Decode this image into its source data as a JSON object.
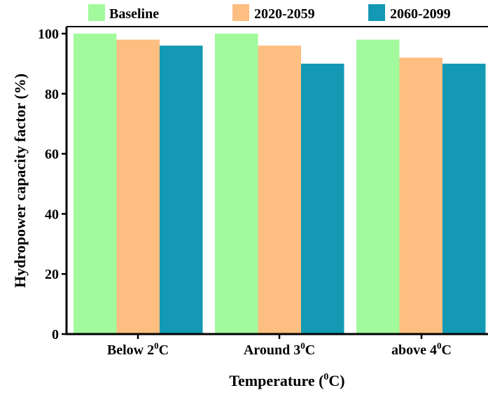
{
  "chart_data": {
    "type": "bar",
    "title": "",
    "xlabel": {
      "base": "Temperature (",
      "sup": "0",
      "tail": "C)"
    },
    "ylabel": "Hydropower capacity factor (%)",
    "ylim": [
      0,
      100
    ],
    "yticks": [
      "0",
      "20",
      "40",
      "60",
      "80",
      "100"
    ],
    "grid": false,
    "legend_position": "top",
    "categories": [
      {
        "base": "Below 2",
        "sup": "0",
        "tail": "C"
      },
      {
        "base": "Around 3",
        "sup": "0",
        "tail": "C"
      },
      {
        "base": "above 4",
        "sup": "0",
        "tail": "C"
      }
    ],
    "series": [
      {
        "name": "Baseline",
        "color": "#A2FA9D",
        "values": [
          100,
          100,
          98
        ]
      },
      {
        "name": "2020-2059",
        "color": "#FDBE81",
        "values": [
          98,
          96,
          92
        ]
      },
      {
        "name": "2060-2099",
        "color": "#1399B4",
        "values": [
          96,
          90,
          90
        ]
      }
    ]
  }
}
